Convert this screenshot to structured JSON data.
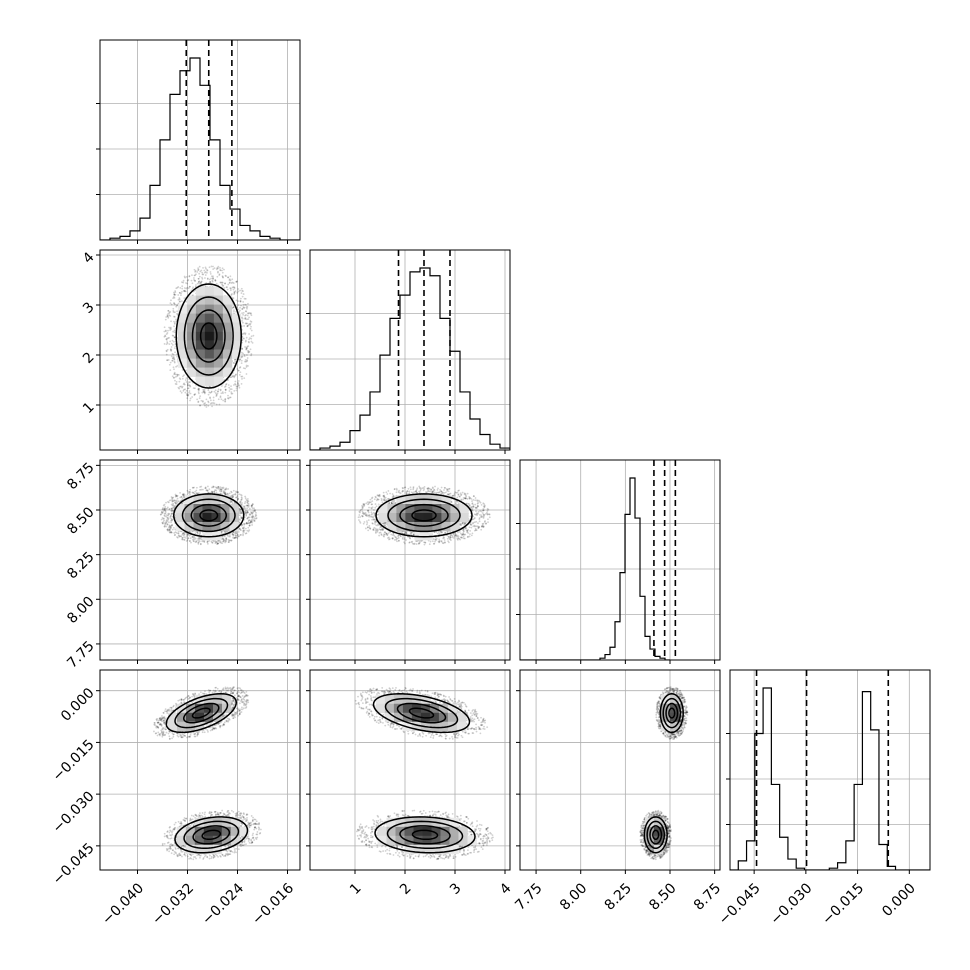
{
  "chart_data": {
    "type": "corner",
    "parameters": [
      {
        "range": [
          -0.046,
          -0.014
        ],
        "ticks": [
          -0.04,
          -0.032,
          -0.024,
          -0.016
        ],
        "tick_labels": [
          "−0.040",
          "−0.032",
          "−0.024",
          "−0.016"
        ],
        "quantiles": [
          -0.0322,
          -0.0286,
          -0.0249
        ],
        "hist": {
          "bin_start": -0.046,
          "bin_width": 0.0016,
          "counts": [
            0,
            1,
            2,
            5,
            12,
            30,
            55,
            80,
            93,
            100,
            85,
            55,
            30,
            17,
            8,
            5,
            2,
            1,
            0,
            0
          ]
        }
      },
      {
        "range": [
          0.1,
          4.1
        ],
        "ticks": [
          1,
          2,
          3,
          4
        ],
        "tick_labels": [
          "1",
          "2",
          "3",
          "4"
        ],
        "quantiles": [
          1.87,
          2.38,
          2.9
        ],
        "hist": {
          "bin_start": 0.1,
          "bin_width": 0.2,
          "counts": [
            0,
            1,
            2,
            4,
            10,
            18,
            30,
            49,
            68,
            80,
            92,
            94,
            90,
            68,
            51,
            30,
            16,
            8,
            3,
            1
          ]
        }
      },
      {
        "range": [
          7.66,
          8.78
        ],
        "ticks": [
          7.75,
          8.0,
          8.25,
          8.5,
          8.75
        ],
        "tick_labels": [
          "7.75",
          "8.00",
          "8.25",
          "8.50",
          "8.75"
        ],
        "quantiles": [
          8.41,
          8.47,
          8.53
        ],
        "hist": {
          "bin_start": 7.66,
          "bin_width": 0.028,
          "counts": [
            0,
            0,
            0,
            0,
            0,
            0,
            0,
            0,
            0,
            0,
            0,
            0,
            0,
            0,
            0,
            0,
            1,
            3,
            7,
            21,
            48,
            80,
            100,
            78,
            35,
            13,
            6,
            2,
            1,
            0
          ]
        }
      },
      {
        "range": [
          -0.052,
          0.006
        ],
        "ticks": [
          -0.045,
          -0.03,
          -0.015,
          0.0
        ],
        "tick_labels": [
          "−0.045",
          "−0.030",
          "−0.015",
          "0.000"
        ],
        "quantiles": [
          -0.0443,
          -0.0298,
          -0.0061
        ],
        "hist": {
          "bin_start": -0.052,
          "bin_width": 0.0024,
          "counts": [
            0,
            5,
            16,
            75,
            100,
            47,
            18,
            6,
            1,
            0,
            0,
            0,
            1,
            4,
            16,
            47,
            98,
            77,
            14,
            2,
            0,
            0,
            0,
            0,
            0
          ]
        }
      }
    ],
    "pairs": [
      {
        "x": 0,
        "y": 1,
        "blobs": [
          {
            "mx": -0.0286,
            "my": 2.38,
            "sx": 0.0026,
            "sy": 0.52,
            "rho": 0.0
          }
        ]
      },
      {
        "x": 0,
        "y": 2,
        "blobs": [
          {
            "mx": -0.0286,
            "my": 8.47,
            "sx": 0.0028,
            "sy": 0.06,
            "rho": 0.0
          }
        ]
      },
      {
        "x": 1,
        "y": 2,
        "blobs": [
          {
            "mx": 2.38,
            "my": 8.47,
            "sx": 0.48,
            "sy": 0.06,
            "rho": 0.0
          }
        ]
      },
      {
        "x": 0,
        "y": 3,
        "blobs": [
          {
            "mx": -0.0298,
            "my": -0.0065,
            "sx": 0.0028,
            "sy": 0.0028,
            "rho": 0.55
          },
          {
            "mx": -0.0282,
            "my": -0.0418,
            "sx": 0.0029,
            "sy": 0.0026,
            "rho": 0.25
          }
        ]
      },
      {
        "x": 1,
        "y": 3,
        "blobs": [
          {
            "mx": 2.33,
            "my": -0.0065,
            "sx": 0.48,
            "sy": 0.0028,
            "rho": -0.45
          },
          {
            "mx": 2.4,
            "my": -0.0418,
            "sx": 0.5,
            "sy": 0.0026,
            "rho": -0.1
          }
        ]
      },
      {
        "x": 2,
        "y": 3,
        "blobs": [
          {
            "mx": 8.51,
            "my": -0.0065,
            "sx": 0.032,
            "sy": 0.0028,
            "rho": 0.0
          },
          {
            "mx": 8.42,
            "my": -0.0418,
            "sx": 0.032,
            "sy": 0.0026,
            "rho": 0.0
          }
        ]
      }
    ],
    "grid": true,
    "colors": {
      "line": "#000000",
      "grid": "#b0b0b0",
      "density": "#000000"
    }
  }
}
